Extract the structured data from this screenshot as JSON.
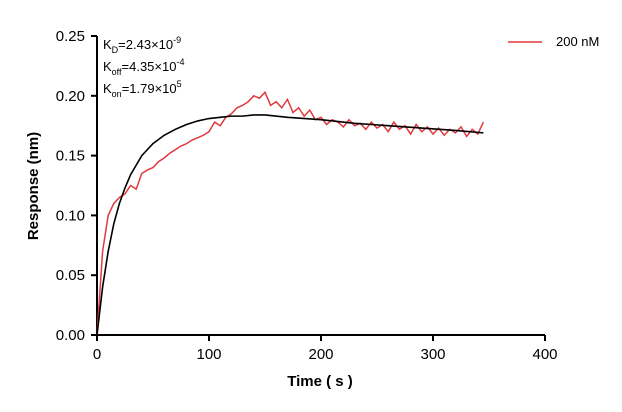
{
  "chart_data": {
    "type": "line",
    "xlabel": "Time ( s )",
    "ylabel": "Response (nm)",
    "annotations": [
      {
        "symbol": "K",
        "subscript": "D",
        "text": "=2.43×10",
        "exponent": "-9"
      },
      {
        "symbol": "K",
        "subscript": "off",
        "text": "=4.35×10",
        "exponent": "-4"
      },
      {
        "symbol": "K",
        "subscript": "on",
        "text": "=1.79×10",
        "exponent": "5"
      }
    ],
    "xlim": [
      0,
      400
    ],
    "xticks": [
      0,
      100,
      200,
      300,
      400
    ],
    "ylim": [
      0,
      0.25
    ],
    "yticks": [
      {
        "value": 0,
        "label": "0.00"
      },
      0.05,
      {
        "value": 0.1,
        "label": "0.10"
      },
      0.15,
      {
        "value": 0.2,
        "label": "0.20"
      },
      0.25
    ],
    "legend": "upper right",
    "series": [
      {
        "name": "200 nM",
        "color": "#e0393e",
        "x": [
          0,
          5,
          10,
          15,
          20,
          25,
          30,
          35,
          40,
          45,
          50,
          55,
          60,
          65,
          70,
          75,
          80,
          85,
          90,
          95,
          100,
          105,
          110,
          115,
          120,
          125,
          130,
          135,
          140,
          145,
          150,
          155,
          160,
          165,
          170,
          175,
          180,
          185,
          190,
          195,
          200,
          205,
          210,
          215,
          220,
          225,
          230,
          235,
          240,
          245,
          250,
          255,
          260,
          265,
          270,
          275,
          280,
          285,
          290,
          295,
          300,
          305,
          310,
          315,
          320,
          325,
          330,
          335,
          340,
          345
        ],
        "values": [
          0.0,
          0.07,
          0.1,
          0.11,
          0.115,
          0.118,
          0.125,
          0.122,
          0.135,
          0.138,
          0.14,
          0.145,
          0.148,
          0.152,
          0.155,
          0.158,
          0.16,
          0.163,
          0.165,
          0.167,
          0.17,
          0.178,
          0.175,
          0.182,
          0.185,
          0.19,
          0.192,
          0.195,
          0.2,
          0.198,
          0.203,
          0.192,
          0.195,
          0.19,
          0.197,
          0.186,
          0.19,
          0.183,
          0.188,
          0.18,
          0.182,
          0.176,
          0.18,
          0.178,
          0.174,
          0.18,
          0.175,
          0.177,
          0.172,
          0.178,
          0.173,
          0.176,
          0.17,
          0.178,
          0.172,
          0.175,
          0.168,
          0.176,
          0.17,
          0.174,
          0.168,
          0.173,
          0.167,
          0.172,
          0.169,
          0.174,
          0.166,
          0.172,
          0.168,
          0.178
        ]
      },
      {
        "color": "#000000",
        "x": [
          0,
          5,
          10,
          15,
          20,
          25,
          30,
          40,
          50,
          60,
          70,
          80,
          90,
          100,
          110,
          120,
          130,
          140,
          150,
          170,
          200,
          230,
          260,
          290,
          320,
          345
        ],
        "values": [
          0,
          0.04,
          0.07,
          0.093,
          0.11,
          0.123,
          0.134,
          0.15,
          0.16,
          0.167,
          0.172,
          0.176,
          0.179,
          0.181,
          0.182,
          0.183,
          0.183,
          0.184,
          0.184,
          0.182,
          0.18,
          0.177,
          0.175,
          0.173,
          0.171,
          0.169
        ]
      }
    ]
  }
}
